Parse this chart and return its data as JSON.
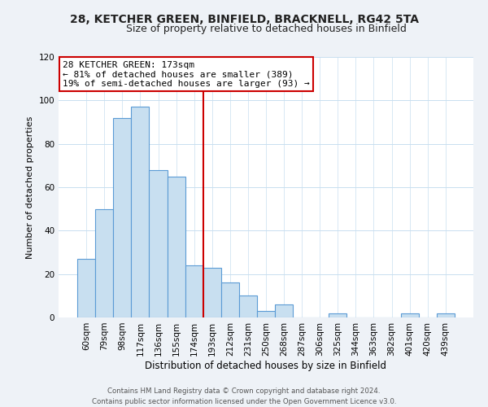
{
  "title1": "28, KETCHER GREEN, BINFIELD, BRACKNELL, RG42 5TA",
  "title2": "Size of property relative to detached houses in Binfield",
  "xlabel": "Distribution of detached houses by size in Binfield",
  "ylabel": "Number of detached properties",
  "bar_labels": [
    "60sqm",
    "79sqm",
    "98sqm",
    "117sqm",
    "136sqm",
    "155sqm",
    "174sqm",
    "193sqm",
    "212sqm",
    "231sqm",
    "250sqm",
    "268sqm",
    "287sqm",
    "306sqm",
    "325sqm",
    "344sqm",
    "363sqm",
    "382sqm",
    "401sqm",
    "420sqm",
    "439sqm"
  ],
  "bar_values": [
    27,
    50,
    92,
    97,
    68,
    65,
    24,
    23,
    16,
    10,
    3,
    6,
    0,
    0,
    2,
    0,
    0,
    0,
    2,
    0,
    2
  ],
  "bar_color": "#c8dff0",
  "bar_edge_color": "#5b9bd5",
  "vline_color": "#cc0000",
  "ylim": [
    0,
    120
  ],
  "yticks": [
    0,
    20,
    40,
    60,
    80,
    100,
    120
  ],
  "annotation_title": "28 KETCHER GREEN: 173sqm",
  "annotation_line1": "← 81% of detached houses are smaller (389)",
  "annotation_line2": "19% of semi-detached houses are larger (93) →",
  "annotation_box_color": "#ffffff",
  "annotation_box_edge": "#cc0000",
  "footer1": "Contains HM Land Registry data © Crown copyright and database right 2024.",
  "footer2": "Contains public sector information licensed under the Open Government Licence v3.0.",
  "bg_color": "#eef2f7",
  "plot_bg_color": "#ffffff",
  "grid_color": "#c8dff0"
}
